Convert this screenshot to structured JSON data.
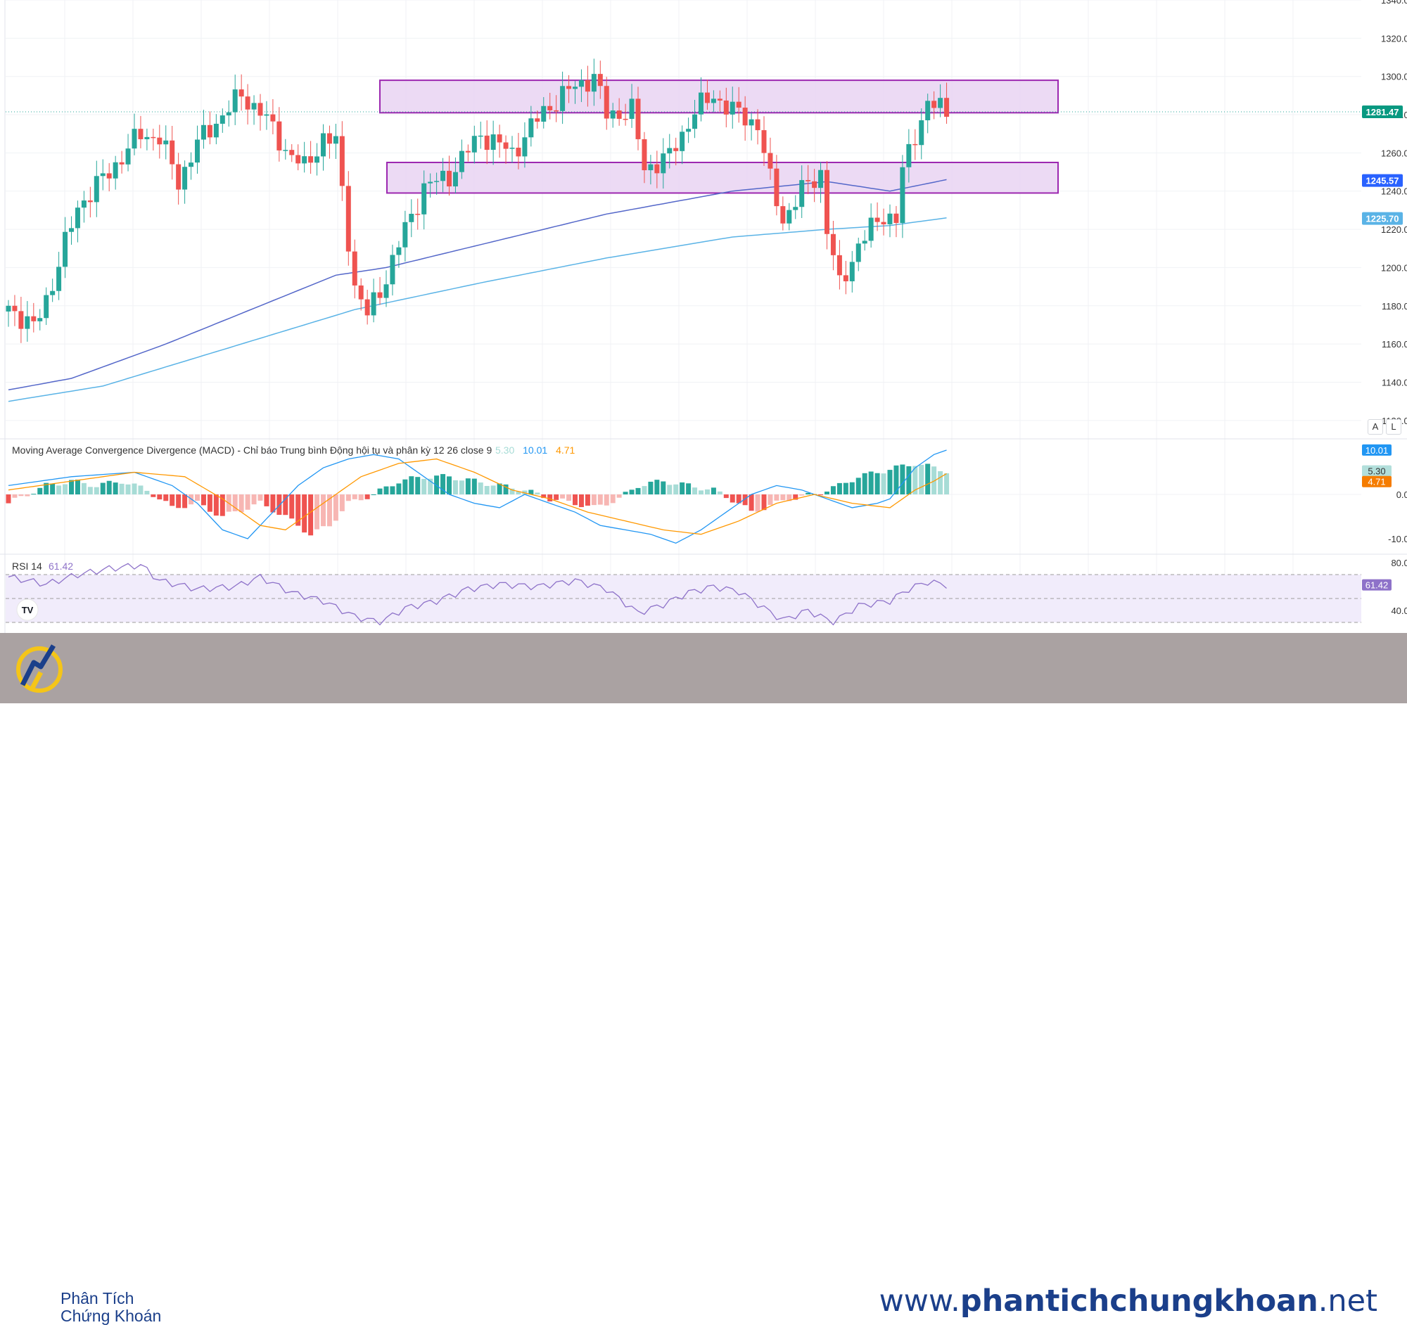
{
  "chart_data": [
    {
      "type": "candlestick",
      "ylim": [
        1110,
        1340
      ],
      "y_ticks": [
        "1120.00",
        "1140.00",
        "1160.00",
        "1180.00",
        "1200.00",
        "1220.00",
        "1240.00",
        "1260.00",
        "1280.00",
        "1300.00",
        "1320.00",
        "1340.00"
      ],
      "last_price_label": "1281.47",
      "ma_fast_label": "1245.57",
      "ma_slow_label": "1225.70",
      "zones": [
        {
          "name": "resistance-zone",
          "y_low": 1281,
          "y_high": 1298
        },
        {
          "name": "support-zone",
          "y_low": 1239,
          "y_high": 1255
        }
      ]
    },
    {
      "type": "bar+line",
      "title": "Moving Average Convergence Divergence (MACD) - Chỉ báo Trung bình Động hội tụ và phân kỳ 12 26 close 9",
      "values": {
        "histogram": "5.30",
        "macd": "10.01",
        "signal": "4.71"
      },
      "y_ticks": [
        "0.00",
        "-10.00"
      ],
      "labels": {
        "macd": "10.01",
        "histogram": "5.30",
        "signal": "4.71"
      }
    },
    {
      "type": "line",
      "title": "RSI 14",
      "value": "61.42",
      "y_ticks": [
        "80.00",
        "40.00"
      ],
      "label": "61.42"
    }
  ],
  "colors": {
    "up": "#26a69a",
    "down": "#ef5350",
    "zone_fill": "#e9d4f2",
    "zone_border": "#9c27b0",
    "ma_fast": "#5467c9",
    "ma_slow": "#5ab3e6",
    "macd_line": "#2196f3",
    "signal_line": "#ff9800",
    "rsi_line": "#8e72c9"
  },
  "scale_buttons": {
    "auto": "A",
    "log": "L"
  },
  "footer": {
    "brand_line1": "Phân Tích",
    "brand_line2": "Chứng Khoán",
    "website_prefix": "www.",
    "website_main": "phantichchungkhoan",
    "website_suffix": ".net",
    "bg_color": "#aaa2a2",
    "text_color": "#1b3f8a"
  },
  "tv_logo": "TV"
}
